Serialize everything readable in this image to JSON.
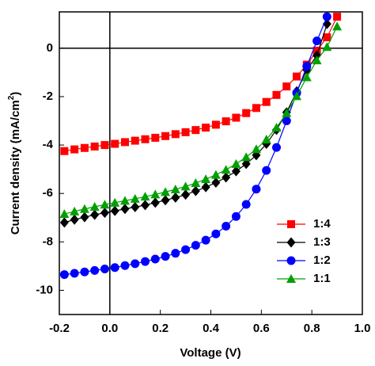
{
  "chart_data": {
    "type": "line",
    "xlabel": "Voltage (V)",
    "ylabel": [
      "Current density (mA/cm",
      "2",
      ")"
    ],
    "xlim": [
      -0.2,
      1.0
    ],
    "ylim": [
      -11,
      1.5
    ],
    "xticks": [
      -0.2,
      {
        "value": 0,
        "label": "0.0"
      },
      0.2,
      0.4,
      0.6,
      0.8,
      {
        "value": 1,
        "label": "1.0"
      }
    ],
    "yticks": [
      -10,
      -8,
      -6,
      -4,
      -2,
      0
    ],
    "legend": "lower right",
    "series": [
      {
        "name": "1:4",
        "color": "#ff0000",
        "marker": "square",
        "x": [
          -0.18,
          -0.14,
          -0.1,
          -0.06,
          -0.02,
          0.02,
          0.06,
          0.1,
          0.14,
          0.18,
          0.22,
          0.26,
          0.3,
          0.34,
          0.38,
          0.42,
          0.46,
          0.5,
          0.54,
          0.58,
          0.62,
          0.66,
          0.7,
          0.74,
          0.78,
          0.82,
          0.86,
          0.9
        ],
        "values": [
          -4.25,
          -4.18,
          -4.12,
          -4.06,
          -4.0,
          -3.95,
          -3.88,
          -3.82,
          -3.76,
          -3.7,
          -3.63,
          -3.55,
          -3.47,
          -3.38,
          -3.28,
          -3.16,
          -3.02,
          -2.87,
          -2.68,
          -2.47,
          -2.22,
          -1.93,
          -1.58,
          -1.17,
          -0.68,
          -0.1,
          0.45,
          1.3
        ]
      },
      {
        "name": "1:3",
        "color": "#000000",
        "marker": "diamond",
        "x": [
          -0.18,
          -0.14,
          -0.1,
          -0.06,
          -0.02,
          0.02,
          0.06,
          0.1,
          0.14,
          0.18,
          0.22,
          0.26,
          0.3,
          0.34,
          0.38,
          0.42,
          0.46,
          0.5,
          0.54,
          0.58,
          0.62,
          0.66,
          0.7,
          0.74,
          0.78,
          0.82,
          0.86
        ],
        "values": [
          -7.2,
          -7.08,
          -6.98,
          -6.88,
          -6.8,
          -6.72,
          -6.64,
          -6.56,
          -6.48,
          -6.38,
          -6.28,
          -6.17,
          -6.05,
          -5.9,
          -5.74,
          -5.55,
          -5.34,
          -5.08,
          -4.78,
          -4.42,
          -3.95,
          -3.37,
          -2.65,
          -1.78,
          -0.9,
          -0.3,
          1.0
        ]
      },
      {
        "name": "1:2",
        "color": "#0000ff",
        "marker": "circle",
        "x": [
          -0.18,
          -0.14,
          -0.1,
          -0.06,
          -0.02,
          0.02,
          0.06,
          0.1,
          0.14,
          0.18,
          0.22,
          0.26,
          0.3,
          0.34,
          0.38,
          0.42,
          0.46,
          0.5,
          0.54,
          0.58,
          0.62,
          0.66,
          0.7,
          0.74,
          0.78,
          0.82,
          0.86
        ],
        "values": [
          -9.35,
          -9.3,
          -9.24,
          -9.18,
          -9.12,
          -9.06,
          -8.98,
          -8.9,
          -8.81,
          -8.71,
          -8.6,
          -8.47,
          -8.32,
          -8.14,
          -7.93,
          -7.67,
          -7.35,
          -6.95,
          -6.45,
          -5.82,
          -5.05,
          -4.1,
          -3.0,
          -1.85,
          -0.75,
          0.3,
          1.3
        ]
      },
      {
        "name": "1:1",
        "color": "#00a000",
        "marker": "triangle",
        "x": [
          -0.18,
          -0.14,
          -0.1,
          -0.06,
          -0.02,
          0.02,
          0.06,
          0.1,
          0.14,
          0.18,
          0.22,
          0.26,
          0.3,
          0.34,
          0.38,
          0.42,
          0.46,
          0.5,
          0.54,
          0.58,
          0.62,
          0.66,
          0.7,
          0.74,
          0.78,
          0.82,
          0.86,
          0.9
        ],
        "values": [
          -6.85,
          -6.74,
          -6.64,
          -6.55,
          -6.46,
          -6.38,
          -6.3,
          -6.22,
          -6.13,
          -6.04,
          -5.94,
          -5.83,
          -5.71,
          -5.57,
          -5.41,
          -5.23,
          -5.02,
          -4.78,
          -4.5,
          -4.17,
          -3.77,
          -3.28,
          -2.68,
          -1.98,
          -1.2,
          -0.5,
          0.05,
          0.9
        ]
      }
    ]
  }
}
